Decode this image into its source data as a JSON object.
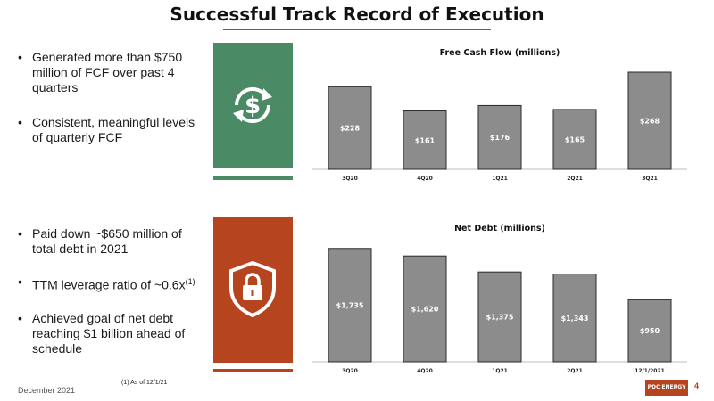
{
  "title": "Successful Track Record of Execution",
  "bullets_top": [
    "Generated more than $750 million of FCF over past 4 quarters",
    "Consistent, meaningful levels of quarterly FCF"
  ],
  "bullets_bottom": {
    "item1": "Paid down ~$650 million of total debt in 2021",
    "item2_text": "TTM leverage ratio of ~0.6x",
    "item2_sup": "(1)",
    "item3": "Achieved goal of net debt reaching $1 billion ahead of schedule"
  },
  "icons": {
    "top": "dollar-cycle-icon",
    "bottom": "shield-lock-icon"
  },
  "colors": {
    "green": "#4a8a64",
    "red": "#b5441f",
    "bar": "#8c8c8c"
  },
  "footer": {
    "date": "December 2021",
    "footnote": "(1) As of 12/1/21",
    "page": "4",
    "logo_text": "PDC ENERGY"
  },
  "chart_data": [
    {
      "type": "bar",
      "title": "Free Cash Flow (millions)",
      "categories": [
        "3Q20",
        "4Q20",
        "1Q21",
        "2Q21",
        "3Q21"
      ],
      "values": [
        228,
        161,
        176,
        165,
        268
      ],
      "labels": [
        "$228",
        "$161",
        "$176",
        "$165",
        "$268"
      ],
      "ylim": [
        0,
        300
      ]
    },
    {
      "type": "bar",
      "title": "Net Debt (millions)",
      "categories": [
        "3Q20",
        "4Q20",
        "1Q21",
        "2Q21",
        "12/1/2021"
      ],
      "values": [
        1735,
        1620,
        1375,
        1343,
        950
      ],
      "labels": [
        "$1,735",
        "$1,620",
        "$1,375",
        "$1,343",
        "$950"
      ],
      "ylim": [
        0,
        1800
      ]
    }
  ]
}
